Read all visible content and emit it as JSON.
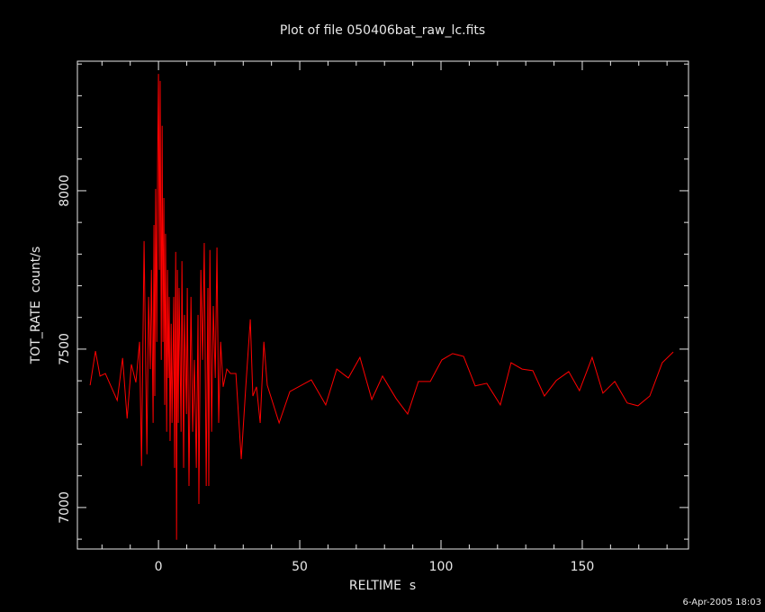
{
  "chart_data": {
    "type": "line",
    "title": "Plot of file 050406bat_raw_lc.fits",
    "x_label": "RELTIME  s",
    "y_label": "TOT_RATE  count/s",
    "timestamp": "6-Apr-2005 18:03",
    "xlim": [
      -28.7,
      187.6
    ],
    "ylim": [
      6869,
      8409
    ],
    "xticks": [
      0,
      50,
      100,
      150
    ],
    "yticks": [
      7000,
      7500,
      8000
    ],
    "xminorticks": [
      -20,
      -10,
      10,
      20,
      30,
      40,
      60,
      70,
      80,
      90,
      110,
      120,
      130,
      140,
      160,
      170,
      180
    ],
    "yminorticks": [
      6900,
      7100,
      7200,
      7300,
      7400,
      7600,
      7700,
      7800,
      7900,
      8100,
      8200,
      8300,
      8400
    ],
    "series": [
      {
        "color": "#ff0000",
        "x": [
          -24.2,
          -22.3,
          -20.7,
          -18.8,
          -14.6,
          -12.7,
          -11.1,
          -9.6,
          -8,
          -6.7,
          -6,
          -5.1,
          -4.1,
          -3.5,
          -2.9,
          -2.5,
          -1.9,
          -1.6,
          -1.3,
          -1,
          -0.6,
          -0.3,
          0,
          0.3,
          0.6,
          1,
          1.3,
          1.6,
          1.9,
          2.2,
          2.5,
          2.9,
          3.2,
          3.5,
          3.8,
          4.1,
          4.5,
          4.8,
          5.4,
          5.7,
          6.1,
          6.4,
          6.7,
          7,
          7.3,
          8,
          8.3,
          8.9,
          9.2,
          9.9,
          10.2,
          10.8,
          11.5,
          12.1,
          12.7,
          13.4,
          14,
          14.3,
          15,
          15.6,
          16.2,
          16.9,
          17.5,
          17.8,
          18.2,
          18.8,
          19.4,
          20.1,
          20.7,
          21.3,
          22,
          22.9,
          24.2,
          25.5,
          27.4,
          29.3,
          30.9,
          32.5,
          33.4,
          34.7,
          36,
          37.3,
          38.5,
          42.7,
          46.5,
          54.1,
          59.2,
          63.1,
          67.2,
          71.3,
          75.5,
          79.3,
          84.1,
          88.2,
          92,
          96.2,
          100.3,
          104.1,
          108,
          112.1,
          116.2,
          121,
          124.8,
          128.7,
          132.5,
          136.6,
          140.8,
          145.2,
          149,
          153.5,
          157.3,
          161.5,
          165.9,
          169.7,
          173.9,
          178.3,
          182.2
        ],
        "values": [
          7386,
          7494,
          7415,
          7423,
          7338,
          7472,
          7281,
          7452,
          7395,
          7523,
          7131,
          7841,
          7168,
          7665,
          7437,
          7750,
          7267,
          7892,
          7352,
          8006,
          7523,
          8091,
          8369,
          7750,
          8347,
          7466,
          8205,
          7523,
          7977,
          7324,
          7864,
          7239,
          7750,
          7409,
          7665,
          7210,
          7580,
          7267,
          7665,
          7125,
          7807,
          6898,
          7750,
          7267,
          7693,
          7239,
          7778,
          7125,
          7608,
          7295,
          7693,
          7068,
          7665,
          7239,
          7466,
          7125,
          7608,
          7011,
          7750,
          7466,
          7835,
          7068,
          7693,
          7068,
          7813,
          7239,
          7636,
          7409,
          7821,
          7267,
          7523,
          7381,
          7437,
          7423,
          7423,
          7153,
          7381,
          7594,
          7352,
          7381,
          7267,
          7523,
          7386,
          7267,
          7366,
          7403,
          7324,
          7437,
          7409,
          7474,
          7341,
          7415,
          7344,
          7295,
          7398,
          7398,
          7466,
          7486,
          7477,
          7384,
          7392,
          7324,
          7457,
          7437,
          7432,
          7352,
          7401,
          7429,
          7369,
          7474,
          7361,
          7398,
          7330,
          7321,
          7352,
          7457,
          7491
        ]
      }
    ]
  }
}
